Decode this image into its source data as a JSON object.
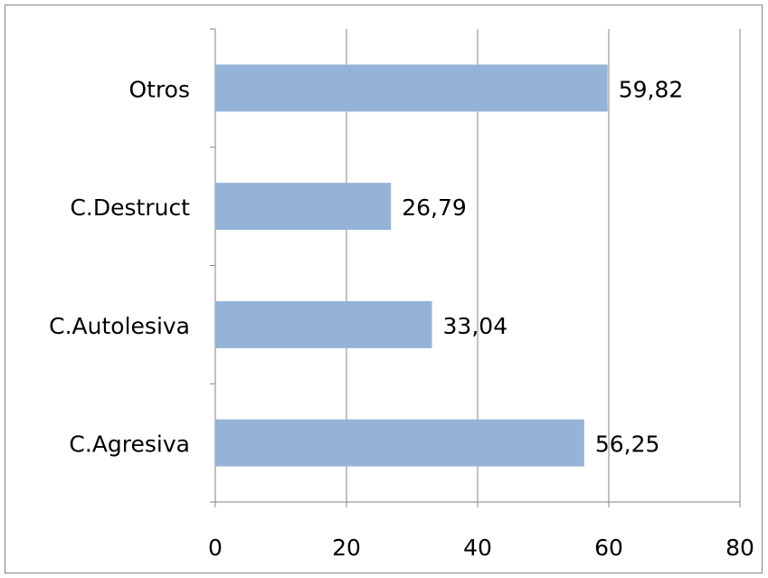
{
  "chart_data": {
    "type": "bar",
    "orientation": "horizontal",
    "categories": [
      "C.Agresiva",
      "C.Autolesiva",
      "C.Destruct",
      "Otros"
    ],
    "values": [
      56.25,
      33.04,
      26.79,
      59.82
    ],
    "value_labels": [
      "56,25",
      "33,04",
      "26,79",
      "59,82"
    ],
    "color": "#95b3d7",
    "xlim": [
      0,
      80
    ],
    "xticks": [
      0,
      20,
      40,
      60,
      80
    ],
    "grid": true
  }
}
